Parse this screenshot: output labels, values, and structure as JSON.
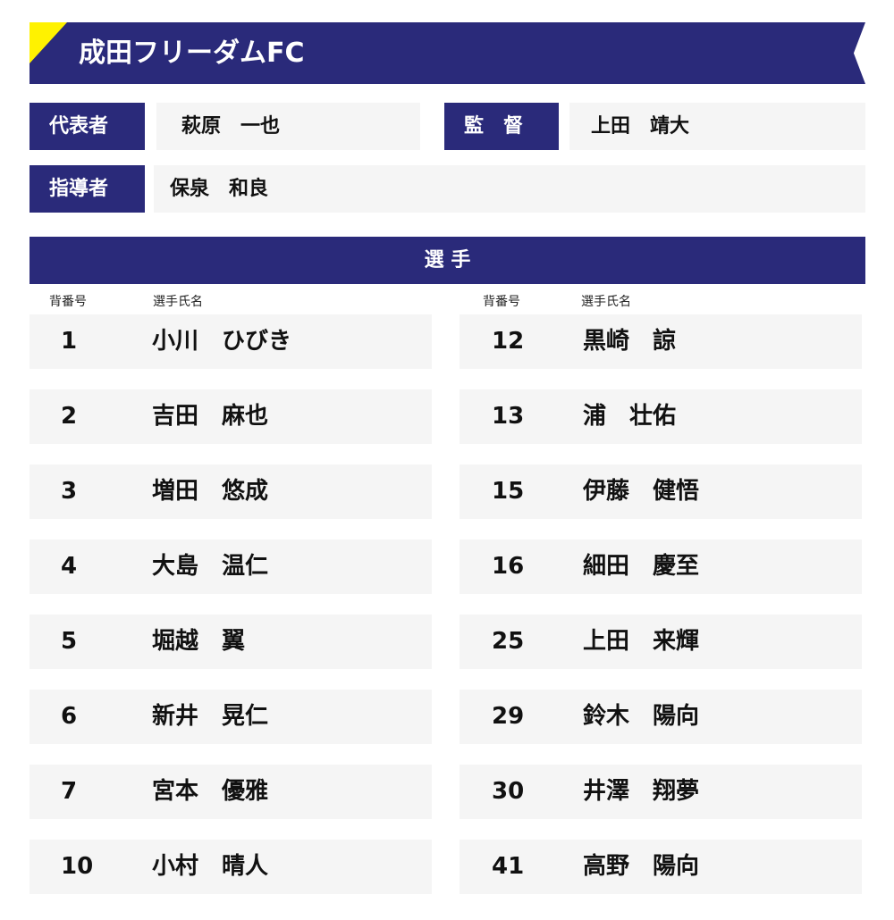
{
  "team": {
    "name": "成田フリーダムFC",
    "colors": {
      "primary": "#2a2a7a",
      "accent": "#fff200"
    }
  },
  "staff": {
    "representative": {
      "label": "代表者",
      "name": "萩原　一也"
    },
    "manager": {
      "label": "監　督",
      "name": "上田　靖大"
    },
    "coach": {
      "label": "指導者",
      "name": "保泉　和良"
    }
  },
  "players_section": {
    "title": "選 手",
    "col_number": "背番号",
    "col_name": "選手氏名"
  },
  "players_left": [
    {
      "number": "1",
      "name": "小川　ひびき"
    },
    {
      "number": "2",
      "name": "吉田　麻也"
    },
    {
      "number": "3",
      "name": "増田　悠成"
    },
    {
      "number": "4",
      "name": "大島　温仁"
    },
    {
      "number": "5",
      "name": "堀越　翼"
    },
    {
      "number": "6",
      "name": "新井　晃仁"
    },
    {
      "number": "7",
      "name": "宮本　優雅"
    },
    {
      "number": "10",
      "name": "小村　晴人"
    }
  ],
  "players_right": [
    {
      "number": "12",
      "name": "黒崎　諒"
    },
    {
      "number": "13",
      "name": "浦　壮佑"
    },
    {
      "number": "15",
      "name": "伊藤　健悟"
    },
    {
      "number": "16",
      "name": "細田　慶至"
    },
    {
      "number": "25",
      "name": "上田　来輝"
    },
    {
      "number": "29",
      "name": "鈴木　陽向"
    },
    {
      "number": "30",
      "name": "井澤　翔夢"
    },
    {
      "number": "41",
      "name": "高野　陽向"
    }
  ]
}
